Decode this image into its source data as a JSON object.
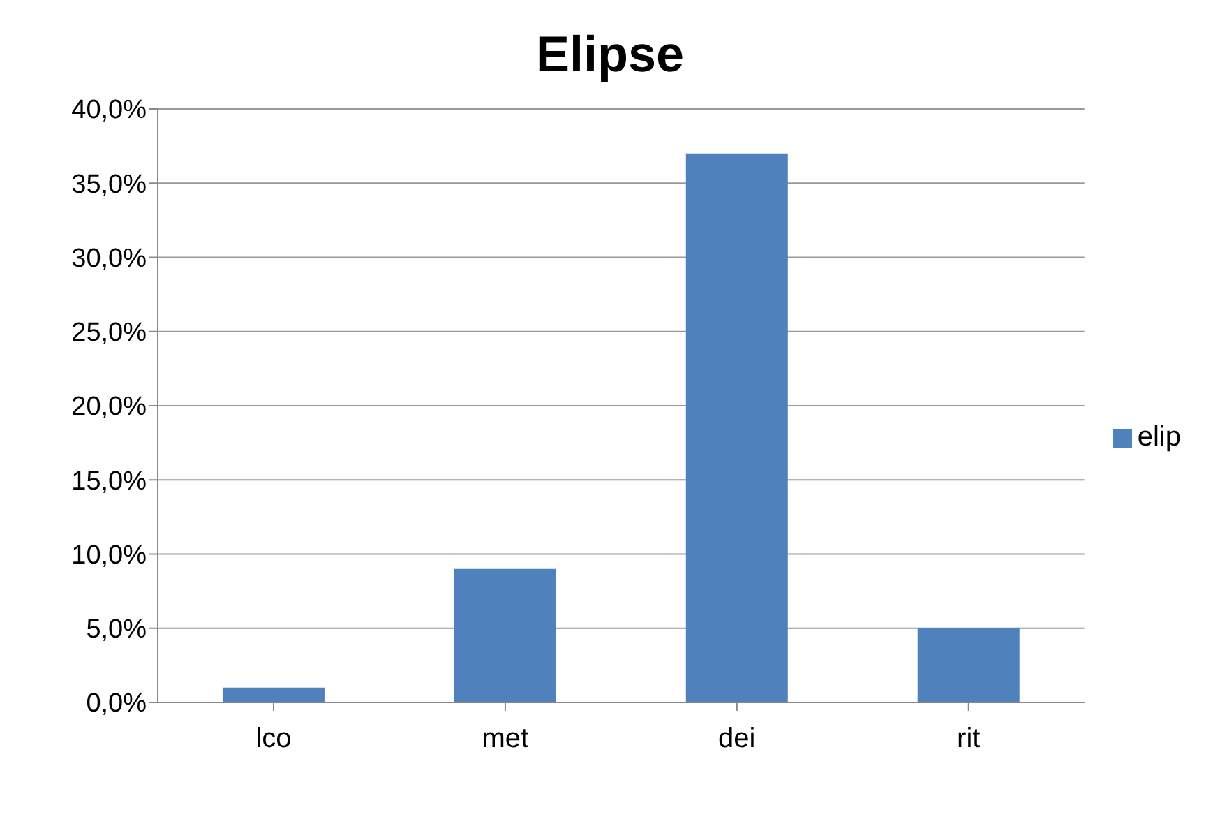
{
  "chart_data": {
    "type": "bar",
    "title": "Elipse",
    "categories": [
      "lco",
      "met",
      "dei",
      "rit"
    ],
    "series": [
      {
        "name": "elip",
        "color": "#4f81bd",
        "values": [
          1.0,
          9.0,
          37.0,
          5.0
        ]
      }
    ],
    "ylim": [
      0,
      40
    ],
    "yticks": [
      {
        "value": 0,
        "label": "0,0%"
      },
      {
        "value": 5,
        "label": "5,0%"
      },
      {
        "value": 10,
        "label": "10,0%"
      },
      {
        "value": 15,
        "label": "15,0%"
      },
      {
        "value": 20,
        "label": "20,0%"
      },
      {
        "value": 25,
        "label": "25,0%"
      },
      {
        "value": 30,
        "label": "30,0%"
      },
      {
        "value": 35,
        "label": "35,0%"
      },
      {
        "value": 40,
        "label": "40,0%"
      }
    ],
    "grid": "y",
    "legend": "right"
  }
}
